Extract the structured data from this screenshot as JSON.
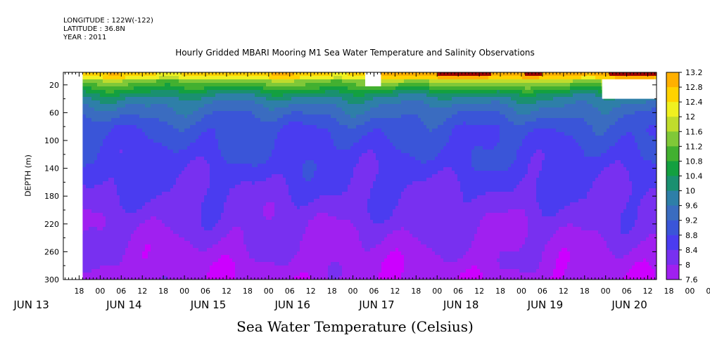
{
  "header": {
    "longitude": "LONGITUDE : 122W(-122)",
    "latitude": "LATITUDE : 36.8N",
    "year": "YEAR : 2011"
  },
  "plot_title": "Hourly Gridded MBARI Mooring M1 Sea Water Temperature and Salinity Observations",
  "caption": "Sea Water Temperature (Celsius)",
  "chart_data": {
    "type": "heatmap",
    "title": "Hourly Gridded MBARI Mooring M1 Sea Water Temperature and Salinity Observations",
    "xlabel": "",
    "ylabel": "DEPTH (m)",
    "units": "Celsius",
    "x_hour_ticks": [
      "18",
      "00",
      "06",
      "12",
      "18",
      "00",
      "06",
      "12",
      "18",
      "00",
      "06",
      "12",
      "18",
      "00",
      "06",
      "12",
      "18",
      "00",
      "06",
      "12",
      "18",
      "00",
      "06",
      "12",
      "18",
      "00",
      "06",
      "12",
      "18",
      "00",
      "06",
      "12"
    ],
    "x_day_labels": [
      "JUN 13",
      "JUN 14",
      "JUN 15",
      "JUN 16",
      "JUN 17",
      "JUN 18",
      "JUN 19",
      "JUN 20"
    ],
    "xlim_hours_since_jun13_00": [
      13.5,
      182.5
    ],
    "y_ticks": [
      20,
      60,
      100,
      140,
      180,
      220,
      260,
      300
    ],
    "ylim": [
      300,
      2
    ],
    "colorbar_levels": [
      7.6,
      8,
      8.4,
      8.8,
      9.2,
      9.6,
      10,
      10.4,
      10.8,
      11.2,
      11.6,
      12,
      12.4,
      12.8,
      13.2
    ],
    "colorbar_labels": [
      "13.2",
      "12.8",
      "12.4",
      "12",
      "11.6",
      "11.2",
      "10.8",
      "10.4",
      "10",
      "9.6",
      "9.2",
      "8.8",
      "8.4",
      "8",
      "7.6"
    ],
    "colorbar_colors": [
      "#cc00ff",
      "#a020f0",
      "#7830f0",
      "#4a3cf0",
      "#3a55d8",
      "#3a6cc0",
      "#2e7fa8",
      "#1a9070",
      "#13a040",
      "#42b030",
      "#80c838",
      "#c0dc2c",
      "#f0f020",
      "#ffd200",
      "#ffb000",
      "#ff8c00",
      "#ff6000",
      "#f03000",
      "#d80000",
      "#a00000"
    ],
    "missing_regions_hours": [
      [
        13.5,
        19.0
      ],
      [
        99.5,
        104.0
      ],
      [
        167.0,
        182.5
      ]
    ],
    "depth_profile_celsius": [
      {
        "depth": 5,
        "temp": 12.6
      },
      {
        "depth": 12,
        "temp": 11.4
      },
      {
        "depth": 20,
        "temp": 10.9
      },
      {
        "depth": 35,
        "temp": 10.0
      },
      {
        "depth": 50,
        "temp": 9.5
      },
      {
        "depth": 65,
        "temp": 9.2
      },
      {
        "depth": 80,
        "temp": 8.9
      },
      {
        "depth": 120,
        "temp": 8.7
      },
      {
        "depth": 160,
        "temp": 8.45
      },
      {
        "depth": 200,
        "temp": 8.2
      },
      {
        "depth": 240,
        "temp": 8.0
      },
      {
        "depth": 270,
        "temp": 7.85
      },
      {
        "depth": 300,
        "temp": 7.7
      }
    ]
  }
}
